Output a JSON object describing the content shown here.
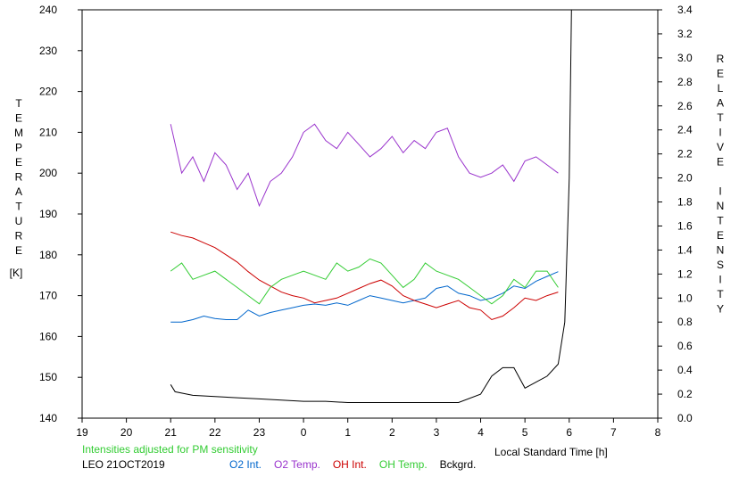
{
  "chart_data": {
    "type": "line",
    "xlabel": "Local Standard Time [h]",
    "ylabel_left": "TEMPERATURE",
    "ylabel_left_unit": "[K]",
    "ylabel_right": "RELATIVE INTENSITY",
    "x_ticks": [
      "19",
      "20",
      "21",
      "22",
      "23",
      "0",
      "1",
      "2",
      "3",
      "4",
      "5",
      "6",
      "7",
      "8"
    ],
    "y_left_ticks": [
      "140",
      "150",
      "160",
      "170",
      "180",
      "190",
      "200",
      "210",
      "220",
      "230",
      "240"
    ],
    "y_right_ticks": [
      "0.0",
      "0.2",
      "0.4",
      "0.6",
      "0.8",
      "1.0",
      "1.2",
      "1.4",
      "1.6",
      "1.8",
      "2.0",
      "2.2",
      "2.4",
      "2.6",
      "2.8",
      "3.0",
      "3.2",
      "3.4"
    ],
    "xlim": [
      19,
      32
    ],
    "ylim_left": [
      140,
      240
    ],
    "ylim_right": [
      0,
      3.4
    ],
    "series": [
      {
        "name": "O2 Int.",
        "axis": "right",
        "color": "#0066cc",
        "x": [
          21.0,
          21.25,
          21.5,
          21.75,
          22.0,
          22.25,
          22.5,
          22.75,
          23.0,
          23.25,
          23.5,
          23.75,
          24.0,
          24.25,
          24.5,
          24.75,
          25.0,
          25.25,
          25.5,
          25.75,
          26.0,
          26.25,
          26.5,
          26.75,
          27.0,
          27.25,
          27.5,
          27.75,
          28.0,
          28.25,
          28.5,
          28.75,
          29.0,
          29.25,
          29.5,
          29.75
        ],
        "y": [
          0.8,
          0.8,
          0.82,
          0.85,
          0.83,
          0.82,
          0.82,
          0.9,
          0.85,
          0.88,
          0.9,
          0.92,
          0.94,
          0.95,
          0.94,
          0.96,
          0.94,
          0.98,
          1.02,
          1.0,
          0.98,
          0.96,
          0.98,
          1.0,
          1.08,
          1.1,
          1.04,
          1.02,
          0.98,
          1.0,
          1.04,
          1.1,
          1.08,
          1.14,
          1.18,
          1.22
        ]
      },
      {
        "name": "O2 Temp.",
        "axis": "left",
        "color": "#9933cc",
        "x": [
          21.0,
          21.25,
          21.5,
          21.75,
          22.0,
          22.25,
          22.5,
          22.75,
          23.0,
          23.25,
          23.5,
          23.75,
          24.0,
          24.25,
          24.5,
          24.75,
          25.0,
          25.25,
          25.5,
          25.75,
          26.0,
          26.25,
          26.5,
          26.75,
          27.0,
          27.25,
          27.5,
          27.75,
          28.0,
          28.25,
          28.5,
          28.75,
          29.0,
          29.25,
          29.5,
          29.75
        ],
        "y": [
          212,
          200,
          204,
          198,
          205,
          202,
          196,
          200,
          192,
          198,
          200,
          204,
          210,
          212,
          208,
          206,
          210,
          207,
          204,
          206,
          209,
          205,
          208,
          206,
          210,
          211,
          204,
          200,
          199,
          200,
          202,
          198,
          203,
          204,
          202,
          200
        ]
      },
      {
        "name": "OH Int.",
        "axis": "right",
        "color": "#cc0000",
        "x": [
          21.0,
          21.25,
          21.5,
          21.75,
          22.0,
          22.25,
          22.5,
          22.75,
          23.0,
          23.25,
          23.5,
          23.75,
          24.0,
          24.25,
          24.5,
          24.75,
          25.0,
          25.25,
          25.5,
          25.75,
          26.0,
          26.25,
          26.5,
          26.75,
          27.0,
          27.25,
          27.5,
          27.75,
          28.0,
          28.25,
          28.5,
          28.75,
          29.0,
          29.25,
          29.5,
          29.75
        ],
        "y": [
          1.55,
          1.52,
          1.5,
          1.46,
          1.42,
          1.36,
          1.3,
          1.22,
          1.15,
          1.1,
          1.05,
          1.02,
          1.0,
          0.96,
          0.98,
          1.0,
          1.04,
          1.08,
          1.12,
          1.15,
          1.1,
          1.02,
          0.98,
          0.95,
          0.92,
          0.95,
          0.98,
          0.92,
          0.9,
          0.82,
          0.85,
          0.92,
          1.0,
          0.98,
          1.02,
          1.05
        ]
      },
      {
        "name": "OH Temp.",
        "axis": "left",
        "color": "#33cc33",
        "x": [
          21.0,
          21.25,
          21.5,
          21.75,
          22.0,
          22.25,
          22.5,
          22.75,
          23.0,
          23.25,
          23.5,
          23.75,
          24.0,
          24.25,
          24.5,
          24.75,
          25.0,
          25.25,
          25.5,
          25.75,
          26.0,
          26.25,
          26.5,
          26.75,
          27.0,
          27.25,
          27.5,
          27.75,
          28.0,
          28.25,
          28.5,
          28.75,
          29.0,
          29.25,
          29.5,
          29.75
        ],
        "y": [
          176,
          178,
          174,
          175,
          176,
          174,
          172,
          170,
          168,
          172,
          174,
          175,
          176,
          175,
          174,
          178,
          176,
          177,
          179,
          178,
          175,
          172,
          174,
          178,
          176,
          175,
          174,
          172,
          170,
          168,
          170,
          174,
          172,
          176,
          176,
          172
        ]
      },
      {
        "name": "Bckgrd.",
        "axis": "right",
        "color": "#000000",
        "x": [
          21.0,
          21.1,
          21.5,
          22.0,
          22.5,
          23.0,
          23.5,
          24.0,
          24.5,
          25.0,
          25.5,
          26.0,
          26.5,
          27.0,
          27.5,
          28.0,
          28.25,
          28.5,
          28.75,
          29.0,
          29.25,
          29.5,
          29.75,
          29.9,
          30.0,
          30.05
        ],
        "y": [
          0.28,
          0.22,
          0.19,
          0.18,
          0.17,
          0.16,
          0.15,
          0.14,
          0.14,
          0.13,
          0.13,
          0.13,
          0.13,
          0.13,
          0.13,
          0.2,
          0.35,
          0.42,
          0.42,
          0.25,
          0.3,
          0.35,
          0.45,
          0.8,
          2.0,
          3.4
        ]
      }
    ]
  },
  "footer": {
    "note": "Intensities adjusted for PM sensitivity",
    "station": "LEO 21OCT2019",
    "legend": [
      {
        "label": "O2 Int.",
        "color": "#0066cc"
      },
      {
        "label": "O2 Temp.",
        "color": "#9933cc"
      },
      {
        "label": "OH Int.",
        "color": "#cc0000"
      },
      {
        "label": "OH Temp.",
        "color": "#33cc33"
      },
      {
        "label": "Bckgrd.",
        "color": "#000000"
      }
    ],
    "note_color": "#33cc33"
  }
}
